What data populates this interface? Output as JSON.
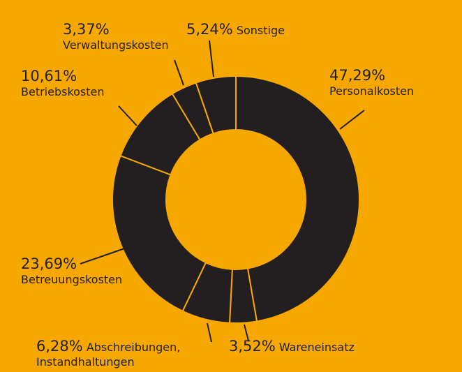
{
  "chart_data": {
    "type": "donut",
    "categories": [
      "Personalkosten",
      "Wareneinsatz",
      "Abschreibungen, Instandhaltungen",
      "Betreuungskosten",
      "Betriebskosten",
      "Verwaltungskosten",
      "Sonstige"
    ],
    "values": [
      47.29,
      3.52,
      6.28,
      23.69,
      10.61,
      3.37,
      5.24
    ],
    "value_labels": [
      "47,29%",
      "3,52%",
      "6,28%",
      "23,69%",
      "10,61%",
      "3,37%",
      "5,24%"
    ],
    "color": "#231f20",
    "background": "#f6a800"
  }
}
